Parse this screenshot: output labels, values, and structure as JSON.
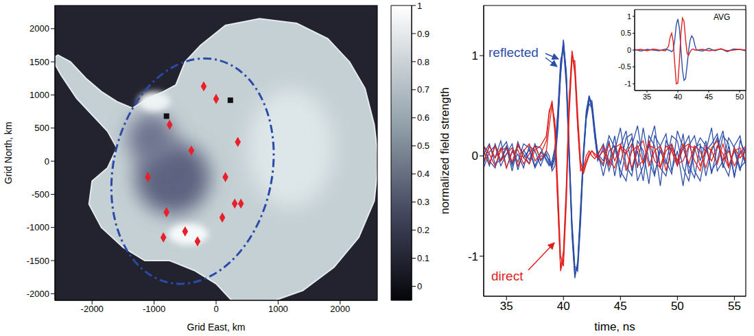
{
  "chart_data": [
    {
      "type": "scatter",
      "x_label": "Grid East, km",
      "y_label": "Grid North, km",
      "xlim": [
        -2600,
        2600
      ],
      "xticks": [
        -2000,
        -1000,
        0,
        1000,
        2000
      ],
      "ylim": [
        -2100,
        2350
      ],
      "yticks": [
        -2000,
        -1500,
        -1000,
        -500,
        0,
        500,
        1000,
        1500,
        2000
      ],
      "series": [
        {
          "color": "#e8202a",
          "marker": "diamond",
          "x": [
            -200,
            0,
            -750,
            -400,
            350,
            -1100,
            150,
            300,
            400,
            100,
            -800,
            -500,
            -850,
            -300
          ],
          "y": [
            1130,
            940,
            550,
            160,
            290,
            -240,
            -240,
            -640,
            -640,
            -850,
            -770,
            -1060,
            -1150,
            -1210
          ]
        },
        {
          "color": "#111111",
          "marker": "square",
          "x": [
            230,
            -800
          ],
          "y": [
            920,
            680
          ]
        }
      ],
      "colorbar": {
        "range": [
          -0.05,
          1
        ],
        "ticks": [
          0,
          0.1,
          0.2,
          0.3,
          0.4,
          0.5,
          0.6,
          0.7,
          0.8,
          0.9,
          1
        ]
      }
    },
    {
      "type": "line",
      "x_label": "time, ns",
      "y_label": "normalized field strength",
      "xlim": [
        33,
        56
      ],
      "xticks": [
        35,
        40,
        45,
        50,
        55
      ],
      "ylim": [
        -1.4,
        1.5
      ],
      "yticks": [
        -1,
        0,
        1
      ],
      "x": [
        33,
        33.5,
        34,
        34.5,
        35,
        35.5,
        36,
        36.5,
        37,
        37.5,
        38,
        38.5,
        38.75,
        39,
        39.25,
        39.5,
        39.75,
        40,
        40.25,
        40.5,
        40.75,
        41,
        41.25,
        41.5,
        41.75,
        42,
        42.25,
        42.5,
        42.75,
        43,
        43.5,
        44,
        44.5,
        45,
        45.5,
        46,
        46.5,
        47,
        47.5,
        48,
        48.5,
        49,
        49.5,
        50,
        50.5,
        51,
        51.5,
        52,
        52.5,
        53,
        53.5,
        54,
        54.5,
        55,
        55.5,
        56
      ],
      "series": [
        {
          "name": "reflected",
          "color": "#2b4ea8",
          "values": [
            0.05,
            -0.1,
            0.12,
            -0.05,
            0.08,
            -0.15,
            0.1,
            0.02,
            -0.08,
            0.12,
            -0.05,
            0.02,
            -0.06,
            -0.12,
            -0.02,
            0.35,
            0.9,
            1.15,
            0.78,
            0.02,
            -0.72,
            -1.18,
            -1.1,
            -0.58,
            0.02,
            0.42,
            0.58,
            0.5,
            0.22,
            -0.02,
            -0.1,
            0.15,
            -0.2,
            0.1,
            0.25,
            -0.15,
            0.05,
            -0.25,
            0.2,
            0.1,
            -0.3,
            0.15,
            0.05,
            -0.1,
            0.22,
            -0.18,
            0.08,
            0.12,
            -0.2,
            0.05,
            0.18,
            -0.12,
            0.1,
            -0.22,
            0.15,
            0.02
          ]
        },
        {
          "name": "reflected",
          "color": "#2b4ea8",
          "values": [
            -0.08,
            0.1,
            -0.02,
            0.15,
            -0.12,
            0.05,
            -0.06,
            0.12,
            0.08,
            -0.1,
            0.04,
            -0.03,
            -0.08,
            -0.08,
            0.05,
            0.45,
            0.95,
            1.08,
            0.7,
            -0.05,
            -0.8,
            -1.22,
            -1.05,
            -0.5,
            0.05,
            0.45,
            0.6,
            0.45,
            0.18,
            0.0,
            0.12,
            -0.08,
            0.2,
            -0.22,
            0.05,
            0.18,
            -0.12,
            0.28,
            -0.05,
            -0.2,
            0.1,
            0.22,
            -0.15,
            0.05,
            -0.3,
            0.1,
            0.2,
            -0.05,
            0.15,
            -0.18,
            0.08,
            0.25,
            -0.1,
            0.05,
            -0.15,
            0.1
          ]
        },
        {
          "name": "reflected",
          "color": "#2b4ea8",
          "values": [
            0.1,
            -0.05,
            -0.12,
            0.06,
            0.14,
            -0.08,
            0.02,
            -0.12,
            0.1,
            0.05,
            -0.1,
            0.05,
            0.0,
            -0.15,
            -0.1,
            0.25,
            0.8,
            1.12,
            0.85,
            0.1,
            -0.65,
            -1.1,
            -1.15,
            -0.68,
            -0.05,
            0.38,
            0.55,
            0.55,
            0.28,
            0.02,
            -0.05,
            0.2,
            0.08,
            -0.15,
            -0.25,
            0.1,
            0.3,
            -0.05,
            0.12,
            -0.18,
            0.05,
            -0.08,
            0.2,
            0.15,
            -0.12,
            -0.25,
            0.05,
            0.18,
            0.1,
            -0.15,
            -0.05,
            0.2,
            0.12,
            -0.2,
            0.05,
            -0.08
          ]
        },
        {
          "name": "reflected",
          "color": "#2b4ea8",
          "values": [
            -0.12,
            0.04,
            0.1,
            -0.1,
            0.02,
            0.12,
            -0.14,
            0.06,
            -0.04,
            0.1,
            0.08,
            -0.05,
            -0.1,
            -0.05,
            0.08,
            0.4,
            0.88,
            1.1,
            0.75,
            -0.02,
            -0.75,
            -1.2,
            -1.08,
            -0.55,
            0.0,
            0.4,
            0.6,
            0.52,
            0.2,
            -0.05,
            0.08,
            -0.15,
            0.05,
            0.28,
            -0.1,
            -0.2,
            0.15,
            0.05,
            -0.28,
            0.2,
            0.1,
            -0.05,
            -0.18,
            0.25,
            0.08,
            -0.1,
            -0.22,
            0.1,
            0.05,
            0.28,
            -0.15,
            -0.05,
            0.18,
            0.08,
            -0.12,
            -0.05
          ]
        },
        {
          "name": "reflected",
          "color": "#2b4ea8",
          "values": [
            0.02,
            0.12,
            -0.08,
            -0.04,
            0.1,
            -0.1,
            0.14,
            -0.02,
            0.06,
            -0.12,
            0.0,
            0.0,
            -0.04,
            -0.1,
            0.0,
            0.3,
            0.82,
            1.16,
            0.82,
            0.06,
            -0.7,
            -1.14,
            -1.12,
            -0.62,
            -0.02,
            0.36,
            0.52,
            0.48,
            0.25,
            0.05,
            -0.2,
            0.05,
            0.1,
            -0.08,
            0.18,
            0.22,
            -0.25,
            -0.1,
            0.1,
            0.3,
            -0.12,
            -0.2,
            0.12,
            -0.05,
            0.08,
            0.2,
            -0.15,
            -0.25,
            0.05,
            0.12,
            0.22,
            -0.08,
            -0.2,
            0.1,
            0.2,
            -0.1
          ]
        },
        {
          "name": "direct",
          "color": "#e0201c",
          "values": [
            0.05,
            -0.08,
            0.1,
            -0.05,
            0.02,
            0.08,
            -0.1,
            0.05,
            0.12,
            -0.05,
            0.02,
            0.15,
            0.42,
            0.55,
            0.28,
            -0.45,
            -1.15,
            -1.02,
            -0.35,
            0.55,
            1.05,
            0.88,
            0.3,
            -0.12,
            -0.15,
            -0.05,
            0.02,
            0.05,
            0.0,
            -0.02,
            0.05,
            -0.1,
            0.08,
            0.12,
            -0.15,
            0.05,
            0.1,
            -0.08,
            0.15,
            -0.05,
            -0.12,
            0.1,
            0.05,
            -0.1,
            0.08,
            0.12,
            -0.05,
            -0.15,
            0.1,
            0.05,
            -0.08,
            0.12,
            -0.1,
            0.05,
            0.08,
            -0.05
          ]
        },
        {
          "name": "direct",
          "color": "#e0201c",
          "values": [
            -0.06,
            0.1,
            -0.02,
            0.08,
            -0.12,
            0.04,
            0.06,
            -0.08,
            0.02,
            0.1,
            -0.04,
            0.05,
            0.3,
            0.5,
            0.35,
            -0.3,
            -1.0,
            -1.1,
            -0.48,
            0.4,
            0.95,
            0.95,
            0.42,
            -0.05,
            -0.18,
            -0.08,
            0.0,
            0.05,
            0.02,
            0.0,
            -0.08,
            0.12,
            -0.05,
            0.1,
            0.05,
            -0.12,
            0.08,
            0.15,
            -0.1,
            0.05,
            0.1,
            -0.15,
            0.08,
            -0.05,
            0.12,
            -0.08,
            0.1,
            0.05,
            -0.12,
            0.08,
            0.15,
            -0.05,
            0.05,
            -0.1,
            0.02,
            0.1
          ]
        },
        {
          "name": "direct",
          "color": "#e0201c",
          "values": [
            0.1,
            0.02,
            -0.1,
            0.06,
            0.08,
            -0.06,
            0.12,
            -0.02,
            -0.08,
            0.06,
            0.1,
            0.2,
            0.45,
            0.52,
            0.22,
            -0.5,
            -1.12,
            -0.95,
            -0.3,
            0.58,
            1.02,
            0.82,
            0.28,
            -0.15,
            -0.12,
            0.0,
            0.05,
            0.0,
            -0.03,
            0.02,
            0.1,
            -0.05,
            -0.12,
            0.08,
            0.02,
            0.12,
            -0.1,
            -0.05,
            0.1,
            0.08,
            -0.12,
            0.05,
            0.12,
            -0.08,
            -0.05,
            0.1,
            0.08,
            -0.1,
            0.05,
            -0.05,
            0.1,
            0.02,
            -0.12,
            0.08,
            -0.02,
            0.05
          ]
        }
      ]
    },
    {
      "type": "line",
      "title": "AVG",
      "xlim": [
        33,
        51
      ],
      "xticks": [
        35,
        40,
        45,
        50
      ],
      "ylim": [
        -1.2,
        1.2
      ],
      "yticks": [
        -1,
        -0.5,
        0,
        0.5,
        1
      ],
      "x": [
        33,
        34,
        35,
        36,
        37,
        38,
        38.5,
        38.75,
        39,
        39.25,
        39.5,
        39.75,
        40,
        40.25,
        40.5,
        40.75,
        41,
        41.25,
        41.5,
        41.75,
        42,
        42.25,
        42.5,
        42.75,
        43,
        44,
        45,
        46,
        47,
        48,
        49,
        50,
        51
      ],
      "series": [
        {
          "color": "#2b4ea8",
          "values": [
            0.02,
            -0.03,
            0.02,
            0.0,
            -0.02,
            0.03,
            0.0,
            -0.02,
            -0.05,
            0.0,
            0.3,
            0.75,
            0.92,
            0.65,
            0.02,
            -0.6,
            -0.9,
            -0.85,
            -0.45,
            0.0,
            0.3,
            0.42,
            0.35,
            0.15,
            0.0,
            -0.03,
            0.05,
            -0.02,
            0.04,
            -0.05,
            0.03,
            0.02,
            -0.02
          ]
        },
        {
          "color": "#e0201c",
          "values": [
            0.0,
            0.02,
            -0.02,
            0.03,
            0.0,
            -0.02,
            0.12,
            0.38,
            0.5,
            0.25,
            -0.4,
            -1.0,
            -0.98,
            -0.35,
            0.5,
            0.95,
            0.85,
            0.32,
            -0.1,
            -0.15,
            -0.05,
            0.02,
            0.03,
            0.0,
            0.0,
            0.02,
            -0.02,
            0.0,
            0.03,
            -0.02,
            0.0,
            0.02,
            0.0
          ]
        }
      ]
    }
  ]
}
